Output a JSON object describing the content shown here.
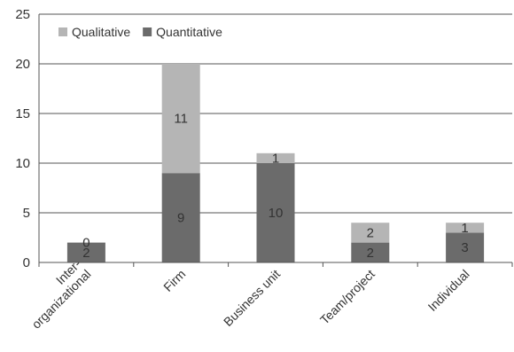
{
  "chart_data": {
    "type": "bar",
    "stacked": true,
    "categories": [
      "Inter-\norganizational",
      "Firm",
      "Business unit",
      "Team/project",
      "Individual"
    ],
    "series": [
      {
        "name": "Quantitative",
        "values": [
          2,
          9,
          10,
          2,
          3
        ],
        "color": "#6b6b6b"
      },
      {
        "name": "Qualitative",
        "values": [
          0,
          11,
          1,
          2,
          1
        ],
        "color": "#b5b5b5"
      }
    ],
    "title": "",
    "xlabel": "",
    "ylabel": "",
    "ylim": [
      0,
      25
    ],
    "yticks": [
      0,
      5,
      10,
      15,
      20,
      25
    ],
    "grid": true,
    "legend": {
      "placement": "top-left",
      "order": [
        "Qualitative",
        "Quantitative"
      ]
    }
  }
}
